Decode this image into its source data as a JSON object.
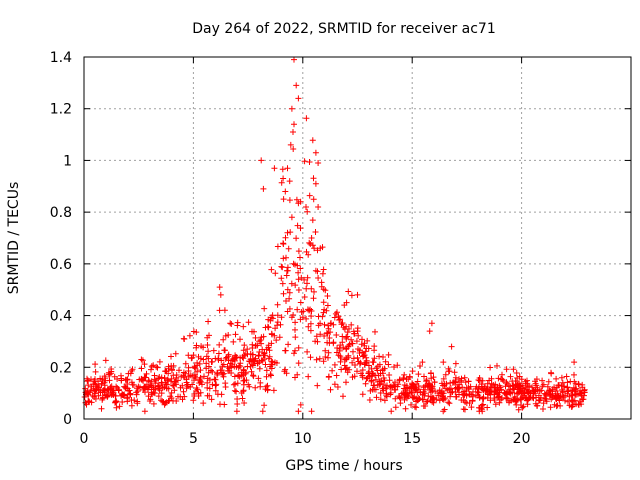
{
  "chart_data": {
    "type": "scatter",
    "title": "Day 264 of 2022, SRMTID for receiver ac71",
    "xlabel": "GPS time / hours",
    "ylabel": "SRMTID / TECUs",
    "xlim": [
      0,
      25
    ],
    "ylim": [
      0,
      1.4
    ],
    "xticks": [
      0,
      5,
      10,
      15,
      20
    ],
    "yticks": [
      0,
      0.2,
      0.4,
      0.6,
      0.8,
      1,
      1.2,
      1.4
    ],
    "xtick_labels": [
      "0",
      "5",
      "10",
      "15",
      "20"
    ],
    "ytick_labels": [
      "0",
      "0.2",
      "0.4",
      "0.6",
      "0.8",
      "1",
      "1.2",
      "1.4"
    ],
    "grid": true,
    "marker": "+",
    "color": "#ff0000",
    "data_extent_hours": [
      0,
      22.9
    ],
    "trend": {
      "x": [
        0,
        1,
        2,
        3,
        4,
        5,
        5.5,
        6,
        6.5,
        7,
        7.5,
        8,
        8.5,
        9,
        9.3,
        9.6,
        10,
        10.5,
        11,
        11.5,
        12,
        12.5,
        13,
        13.5,
        14,
        15,
        16,
        17,
        18,
        19,
        20,
        21,
        22,
        22.9
      ],
      "center": [
        0.11,
        0.12,
        0.12,
        0.12,
        0.14,
        0.17,
        0.2,
        0.22,
        0.2,
        0.18,
        0.2,
        0.22,
        0.25,
        0.4,
        0.52,
        0.55,
        0.5,
        0.5,
        0.36,
        0.27,
        0.28,
        0.26,
        0.22,
        0.16,
        0.13,
        0.11,
        0.11,
        0.11,
        0.1,
        0.11,
        0.1,
        0.09,
        0.1,
        0.09
      ],
      "spread": [
        0.04,
        0.04,
        0.04,
        0.04,
        0.05,
        0.06,
        0.08,
        0.09,
        0.08,
        0.07,
        0.08,
        0.09,
        0.1,
        0.18,
        0.24,
        0.28,
        0.25,
        0.22,
        0.12,
        0.08,
        0.09,
        0.08,
        0.07,
        0.05,
        0.04,
        0.04,
        0.04,
        0.04,
        0.035,
        0.035,
        0.035,
        0.03,
        0.035,
        0.03
      ]
    },
    "notable_points": [
      {
        "x": 9.6,
        "y": 1.39
      },
      {
        "x": 9.7,
        "y": 1.29
      },
      {
        "x": 9.8,
        "y": 1.24
      },
      {
        "x": 9.5,
        "y": 1.2
      },
      {
        "x": 9.6,
        "y": 1.14
      },
      {
        "x": 9.55,
        "y": 1.11
      },
      {
        "x": 9.45,
        "y": 1.06
      },
      {
        "x": 10.6,
        "y": 1.03
      },
      {
        "x": 8.1,
        "y": 1.0
      },
      {
        "x": 10.7,
        "y": 0.99
      },
      {
        "x": 9.3,
        "y": 0.97
      },
      {
        "x": 8.7,
        "y": 0.97
      },
      {
        "x": 9.4,
        "y": 0.92
      },
      {
        "x": 10.6,
        "y": 0.91
      },
      {
        "x": 8.2,
        "y": 0.89
      },
      {
        "x": 9.2,
        "y": 0.88
      },
      {
        "x": 10.5,
        "y": 0.85
      },
      {
        "x": 9.9,
        "y": 0.84
      },
      {
        "x": 10.7,
        "y": 0.82
      },
      {
        "x": 9.5,
        "y": 0.78
      },
      {
        "x": 9.3,
        "y": 0.72
      },
      {
        "x": 10.4,
        "y": 0.7
      },
      {
        "x": 9.1,
        "y": 0.68
      },
      {
        "x": 10.8,
        "y": 0.66
      },
      {
        "x": 6.2,
        "y": 0.51
      },
      {
        "x": 6.25,
        "y": 0.48
      },
      {
        "x": 12.5,
        "y": 0.48
      },
      {
        "x": 12.0,
        "y": 0.45
      },
      {
        "x": 15.9,
        "y": 0.37
      },
      {
        "x": 15.8,
        "y": 0.34
      },
      {
        "x": 16.8,
        "y": 0.28
      },
      {
        "x": 22.4,
        "y": 0.22
      },
      {
        "x": 0.8,
        "y": 0.04
      },
      {
        "x": 14.7,
        "y": 0.04
      },
      {
        "x": 18.2,
        "y": 0.03
      },
      {
        "x": 21.6,
        "y": 0.05
      }
    ]
  }
}
